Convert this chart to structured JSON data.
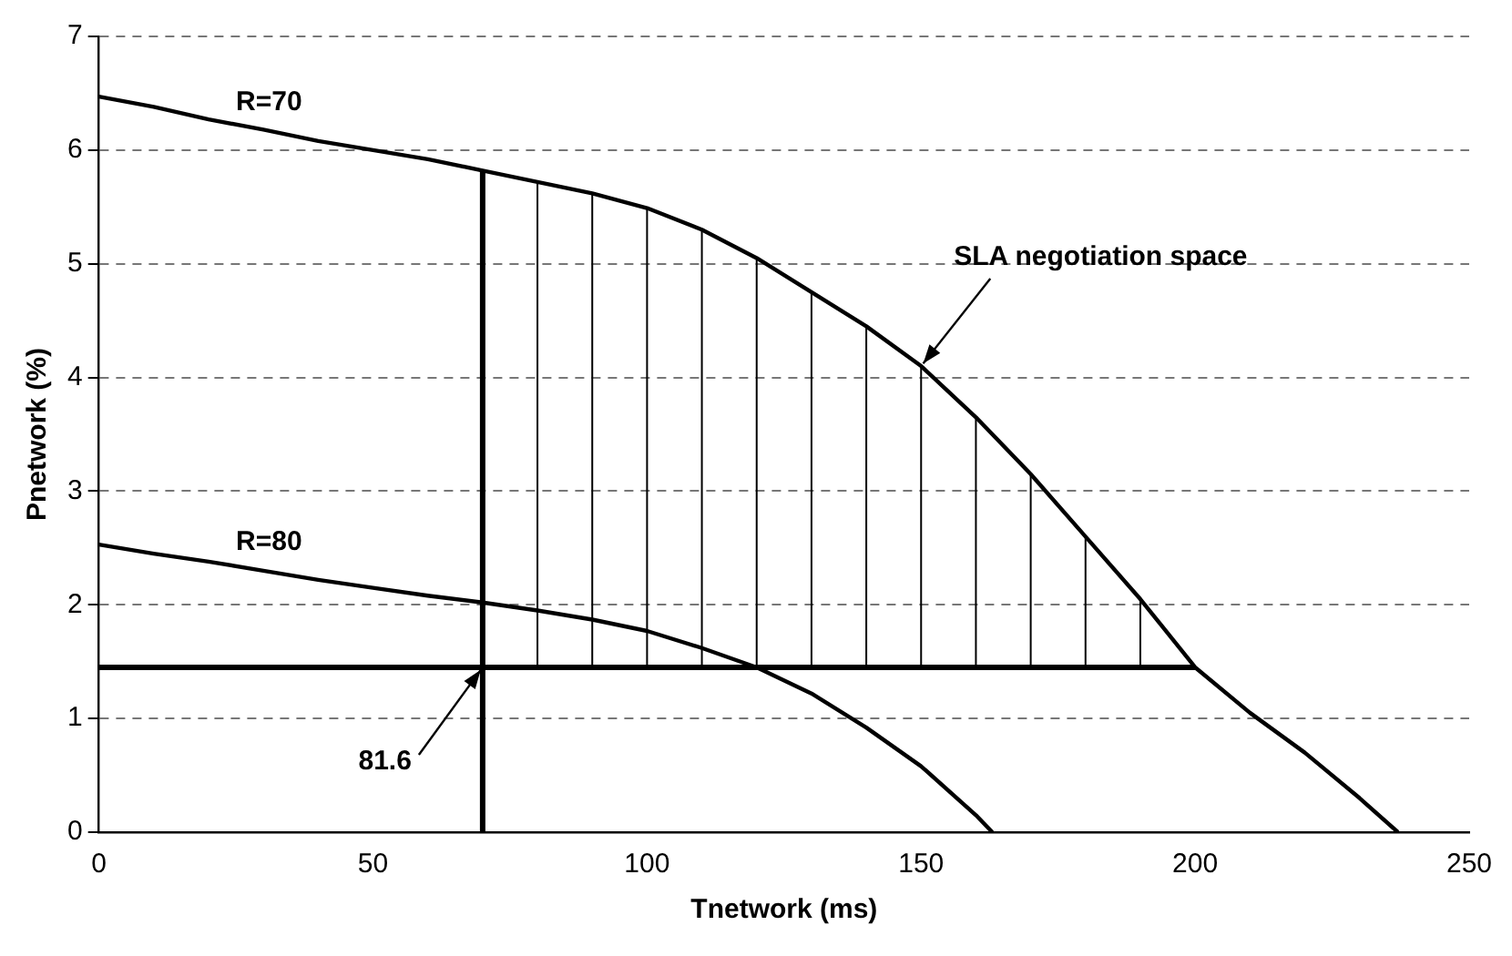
{
  "chart_data": {
    "type": "line",
    "xlabel": "Tnetwork (ms)",
    "ylabel": "Pnetwork (%)",
    "series": [
      {
        "color": "#000000",
        "x": [
          0,
          10,
          20,
          30,
          40,
          50,
          60,
          70,
          80,
          90,
          100,
          110,
          120,
          130,
          140,
          150,
          160,
          170,
          180,
          190,
          200,
          210,
          220,
          230,
          237
        ],
        "values": [
          6.47,
          6.38,
          6.27,
          6.18,
          6.08,
          6.0,
          5.92,
          5.82,
          5.72,
          5.62,
          5.49,
          5.3,
          5.05,
          4.75,
          4.45,
          4.1,
          3.65,
          3.15,
          2.6,
          2.05,
          1.45,
          1.05,
          0.7,
          0.3,
          0
        ]
      },
      {
        "color": "#000000",
        "x": [
          0,
          10,
          20,
          30,
          40,
          50,
          60,
          70,
          80,
          90,
          100,
          110,
          120,
          130,
          140,
          150,
          160,
          163
        ],
        "values": [
          2.53,
          2.45,
          2.38,
          2.3,
          2.22,
          2.15,
          2.08,
          2.02,
          1.95,
          1.87,
          1.77,
          1.62,
          1.45,
          1.22,
          0.92,
          0.58,
          0.15,
          0
        ]
      },
      {
        "color": "#000000",
        "x": [
          70,
          70
        ],
        "values": [
          0,
          5.82
        ]
      },
      {
        "color": "#000000",
        "x": [
          0,
          200
        ],
        "values": [
          1.45,
          1.45
        ]
      },
      {
        "color": "#000000",
        "x": [
          80,
          80
        ],
        "values": [
          1.45,
          5.72
        ]
      },
      {
        "color": "#000000",
        "x": [
          90,
          90
        ],
        "values": [
          1.45,
          5.62
        ]
      },
      {
        "color": "#000000",
        "x": [
          100,
          100
        ],
        "values": [
          1.45,
          5.49
        ]
      },
      {
        "color": "#000000",
        "x": [
          110,
          110
        ],
        "values": [
          1.45,
          5.3
        ]
      },
      {
        "color": "#000000",
        "x": [
          120,
          120
        ],
        "values": [
          1.45,
          5.05
        ]
      },
      {
        "color": "#000000",
        "x": [
          130,
          130
        ],
        "values": [
          1.45,
          4.75
        ]
      },
      {
        "color": "#000000",
        "x": [
          140,
          140
        ],
        "values": [
          1.45,
          4.45
        ]
      },
      {
        "color": "#000000",
        "x": [
          150,
          150
        ],
        "values": [
          1.45,
          4.1
        ]
      },
      {
        "color": "#000000",
        "x": [
          160,
          160
        ],
        "values": [
          1.45,
          3.65
        ]
      },
      {
        "color": "#000000",
        "x": [
          170,
          170
        ],
        "values": [
          1.45,
          3.15
        ]
      },
      {
        "color": "#000000",
        "x": [
          180,
          180
        ],
        "values": [
          1.45,
          2.6
        ]
      },
      {
        "color": "#000000",
        "x": [
          190,
          190
        ],
        "values": [
          1.45,
          2.05
        ]
      }
    ],
    "annotations": [
      {
        "text": "R=70",
        "x": 25,
        "y": 6.2
      },
      {
        "text": "R=80",
        "x": 25,
        "y": 2.33
      },
      {
        "text": "SLA negotiation space",
        "x": 150,
        "y": 4.1
      },
      {
        "text": "81.6",
        "x": 70,
        "y": 1.45
      }
    ],
    "xlim": [
      0,
      250
    ],
    "xticks": [
      0,
      50,
      100,
      150,
      200,
      250
    ],
    "ylim": [
      0,
      7
    ],
    "yticks": [
      0,
      1,
      2,
      3,
      4,
      5,
      6,
      7
    ],
    "grid": "y",
    "legend": false,
    "marker": "none",
    "line_style": "solid"
  }
}
